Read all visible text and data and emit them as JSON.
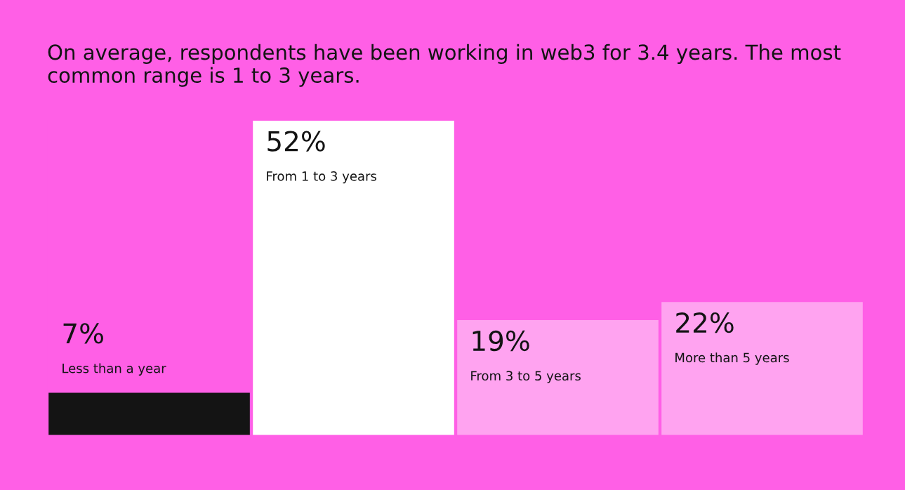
{
  "chart_data": {
    "type": "bar",
    "title": "On average, respondents have been working in web3 for 3.4 years. The most common range is 1 to 3 years.",
    "categories": [
      "Less than a year",
      "From 1 to 3 years",
      "From 3 to 5 years",
      "More than 5 years"
    ],
    "values": [
      7,
      52,
      19,
      22
    ],
    "value_labels": [
      "7%",
      "52%",
      "19%",
      "22%"
    ],
    "colors": [
      "#141414",
      "#ffffff",
      "#ffa3f0",
      "#ffa3f0"
    ]
  }
}
